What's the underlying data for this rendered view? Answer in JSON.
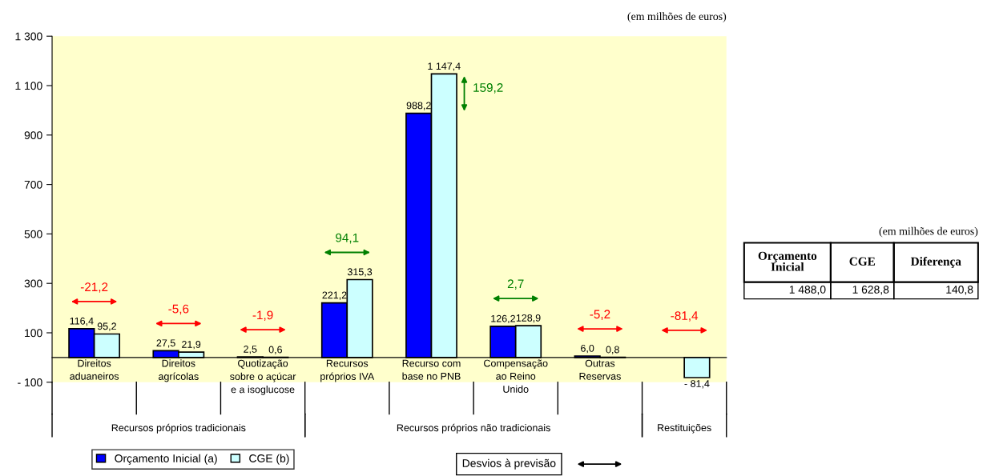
{
  "chart_data": [
    {
      "type": "bar",
      "subtitle": "(em milhões de euros)",
      "categories": [
        "Direitos\naduaneiros",
        "Direitos\nagrícolas",
        "Quotização\nsobre o açúcar\ne a isoglucose",
        "Recursos\npróprios IVA",
        "Recurso com\nbase no PNB",
        "Compensação\nao Reino\nUnido",
        "Outras\nReservas",
        null
      ],
      "series": [
        {
          "name": "Orçamento Inicial (a)",
          "color": "#0000ff",
          "values": [
            116.4,
            27.5,
            2.5,
            221.2,
            988.2,
            126.2,
            6.0,
            null
          ],
          "value_labels": [
            "116,4",
            "27,5",
            "2,5",
            "221,2",
            "988,2",
            "126,2",
            "6,0",
            null
          ]
        },
        {
          "name": "CGE (b)",
          "color": "#ccffff",
          "values": [
            95.2,
            21.9,
            0.6,
            315.3,
            1147.4,
            128.9,
            0.8,
            -81.4
          ],
          "value_labels": [
            "95,2",
            "21,9",
            "0,6",
            "315,3",
            "1 147,4",
            "128,9",
            "0,8",
            "- 81,4"
          ]
        }
      ],
      "ylim": [
        -100,
        1300
      ],
      "yticks": [
        {
          "value": -100,
          "label": "- 100"
        },
        100,
        300,
        500,
        700,
        900,
        {
          "value": 1100,
          "label": "1 100"
        },
        {
          "value": 1300,
          "label": "1 300"
        }
      ],
      "grid": false,
      "legend": "bottom left",
      "annotations": [
        "-21,2",
        "-5,6",
        "-1,9",
        "94,1",
        "159,2",
        "2,7",
        "-5,2",
        "-81,4",
        "Recursos próprios tradicionais",
        "Recursos próprios não tradicionais",
        "Restituições",
        "Desvios à previsão"
      ]
    },
    {
      "type": "other",
      "subtitle": "(em milhões de euros)",
      "categories": [
        "Orçamento\nInicial",
        "CGE",
        "Diferença"
      ],
      "value_labels": [
        "1 488,0",
        "1 628,8",
        "140,8"
      ]
    }
  ]
}
